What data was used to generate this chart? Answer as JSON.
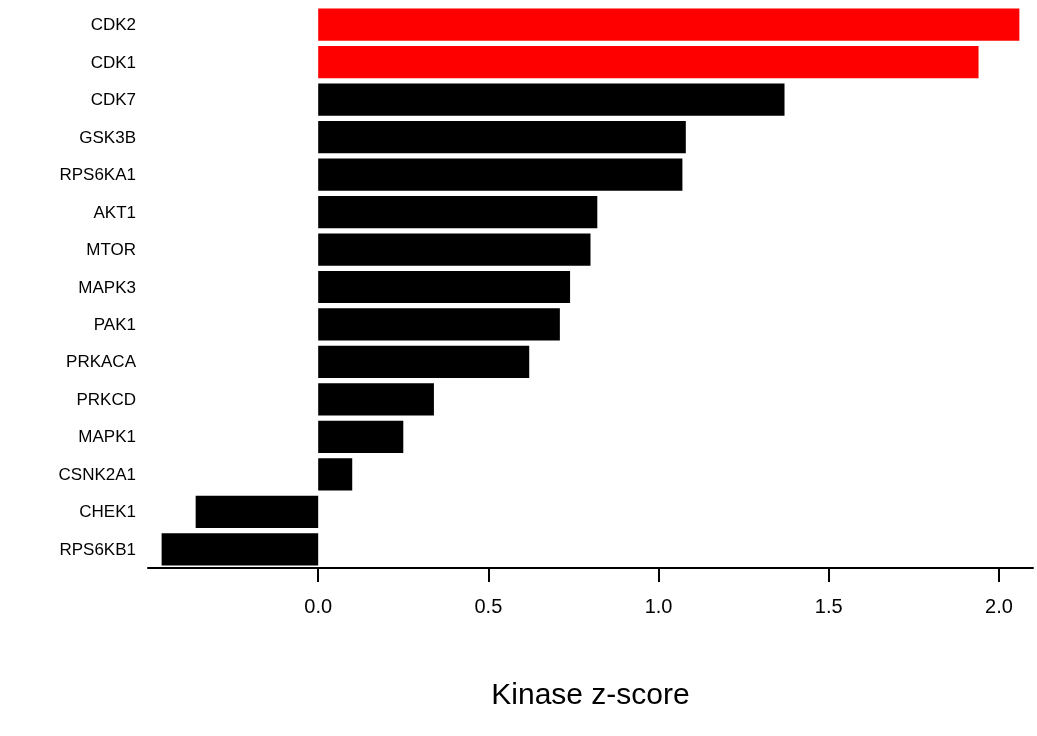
{
  "chart_data": {
    "type": "bar",
    "orientation": "horizontal",
    "xlabel": "Kinase z-score",
    "categories": [
      "CDK2",
      "CDK1",
      "CDK7",
      "GSK3B",
      "RPS6KA1",
      "AKT1",
      "MTOR",
      "MAPK3",
      "PAK1",
      "PRKACA",
      "PRKCD",
      "MAPK1",
      "CSNK2A1",
      "CHEK1",
      "RPS6KB1"
    ],
    "values": [
      2.06,
      1.94,
      1.37,
      1.08,
      1.07,
      0.82,
      0.8,
      0.74,
      0.71,
      0.62,
      0.34,
      0.25,
      0.1,
      -0.36,
      -0.46
    ],
    "colors": [
      "#ff0000",
      "#ff0000",
      "#000000",
      "#000000",
      "#000000",
      "#000000",
      "#000000",
      "#000000",
      "#000000",
      "#000000",
      "#000000",
      "#000000",
      "#000000",
      "#000000",
      "#000000"
    ],
    "xlim": [
      -0.5,
      2.1
    ],
    "xticks": [
      {
        "value": 0,
        "label": "0.0"
      },
      0.5,
      {
        "value": 1,
        "label": "1.0"
      },
      1.5,
      {
        "value": 2,
        "label": "2.0"
      }
    ],
    "grid": false
  }
}
